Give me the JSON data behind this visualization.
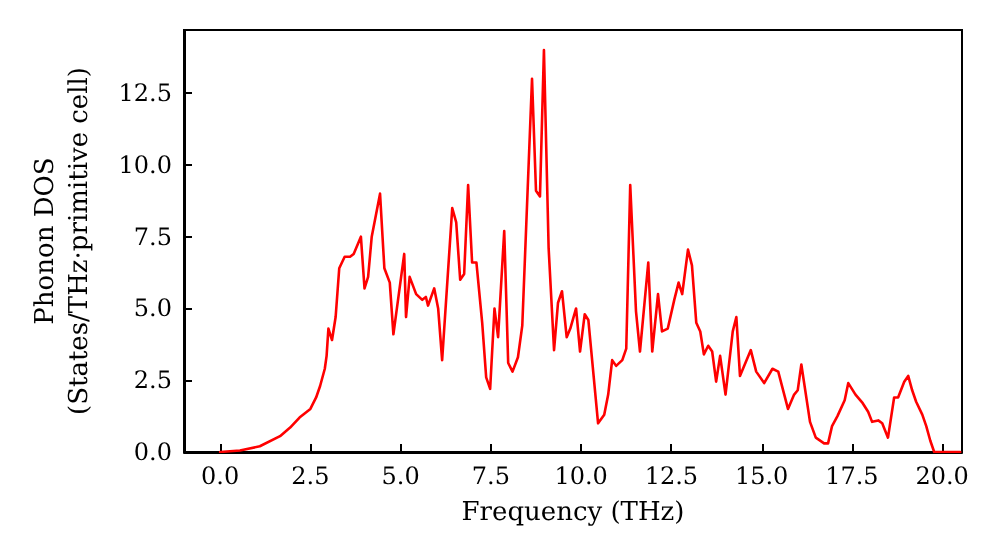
{
  "chart_data": {
    "type": "line",
    "xlabel": "Frequency (THz)",
    "ylabel": "Phonon DOS\n(States/THz·primitive cell)",
    "xlim": [
      -1,
      20.55
    ],
    "ylim": [
      0,
      14.7
    ],
    "xticks": [
      {
        "value": 0,
        "label": "0.0"
      },
      {
        "value": 2.5,
        "label": "2.5"
      },
      {
        "value": 5,
        "label": "5.0"
      },
      {
        "value": 7.5,
        "label": "7.5"
      },
      {
        "value": 10,
        "label": "10.0"
      },
      {
        "value": 12.5,
        "label": "12.5"
      },
      {
        "value": 15,
        "label": "15.0"
      },
      {
        "value": 17.5,
        "label": "17.5"
      },
      {
        "value": 20,
        "label": "20.0"
      }
    ],
    "yticks": [
      {
        "value": 0,
        "label": "0.0"
      },
      {
        "value": 2.5,
        "label": "2.5"
      },
      {
        "value": 5,
        "label": "5.0"
      },
      {
        "value": 7.5,
        "label": "7.5"
      },
      {
        "value": 10,
        "label": "10.0"
      },
      {
        "value": 12.5,
        "label": "12.5"
      }
    ],
    "grid": false,
    "marker": "none",
    "line_style": "solid",
    "series": [
      {
        "color": "#ff0000",
        "x": [
          0,
          0.55,
          1.1,
          1.66,
          1.94,
          2.2,
          2.5,
          2.66,
          2.77,
          2.9,
          2.95,
          3.0,
          3.1,
          3.2,
          3.3,
          3.45,
          3.6,
          3.7,
          3.9,
          4.0,
          4.1,
          4.2,
          4.43,
          4.55,
          4.7,
          4.8,
          5.1,
          5.15,
          5.25,
          5.43,
          5.6,
          5.7,
          5.76,
          5.93,
          6.04,
          6.15,
          6.43,
          6.54,
          6.65,
          6.76,
          6.87,
          6.98,
          7.1,
          7.26,
          7.37,
          7.48,
          7.6,
          7.7,
          7.87,
          7.98,
          8.1,
          8.25,
          8.37,
          8.64,
          8.75,
          8.86,
          8.97,
          9.1,
          9.25,
          9.36,
          9.47,
          9.6,
          9.7,
          9.86,
          9.97,
          10.1,
          10.2,
          10.47,
          10.64,
          10.75,
          10.86,
          10.97,
          11.14,
          11.25,
          11.36,
          11.52,
          11.63,
          11.86,
          11.97,
          12.13,
          12.24,
          12.4,
          12.58,
          12.7,
          12.8,
          12.96,
          13.07,
          13.19,
          13.3,
          13.4,
          13.52,
          13.63,
          13.74,
          13.85,
          14.0,
          14.2,
          14.3,
          14.4,
          14.7,
          14.85,
          15.07,
          15.3,
          15.46,
          15.73,
          15.9,
          16.0,
          16.1,
          16.34,
          16.5,
          16.73,
          16.84,
          16.95,
          17.1,
          17.3,
          17.4,
          17.6,
          17.8,
          17.95,
          18.06,
          18.23,
          18.34,
          18.5,
          18.67,
          18.78,
          18.95,
          19.06,
          19.17,
          19.28,
          19.45,
          19.56,
          19.67,
          19.78,
          20.5
        ],
        "values": [
          0,
          0.05,
          0.2,
          0.55,
          0.85,
          1.2,
          1.5,
          1.9,
          2.3,
          2.9,
          3.35,
          4.3,
          3.9,
          4.7,
          6.4,
          6.8,
          6.8,
          6.9,
          7.5,
          5.7,
          6.1,
          7.5,
          9.0,
          6.4,
          5.9,
          4.1,
          6.9,
          4.7,
          6.1,
          5.5,
          5.3,
          5.4,
          5.1,
          5.7,
          5.0,
          3.2,
          8.5,
          8.0,
          6.0,
          6.2,
          9.3,
          6.6,
          6.6,
          4.5,
          2.6,
          2.2,
          5.0,
          4.0,
          7.7,
          3.1,
          2.8,
          3.3,
          4.4,
          13.0,
          9.1,
          8.9,
          14.0,
          7.1,
          3.55,
          5.2,
          5.6,
          4.0,
          4.3,
          5.0,
          3.5,
          4.8,
          4.6,
          1.0,
          1.3,
          2.0,
          3.2,
          3.0,
          3.2,
          3.6,
          9.3,
          4.9,
          3.5,
          6.6,
          3.5,
          5.5,
          4.2,
          4.3,
          5.3,
          5.9,
          5.5,
          7.05,
          6.5,
          4.5,
          4.2,
          3.4,
          3.7,
          3.5,
          2.45,
          3.35,
          2.0,
          4.2,
          4.7,
          2.65,
          3.55,
          2.8,
          2.4,
          2.9,
          2.8,
          1.5,
          2.0,
          2.15,
          3.05,
          1.05,
          0.5,
          0.3,
          0.3,
          0.9,
          1.25,
          1.8,
          2.4,
          2.0,
          1.7,
          1.4,
          1.05,
          1.1,
          1.0,
          0.5,
          1.9,
          1.9,
          2.45,
          2.65,
          2.15,
          1.75,
          1.3,
          0.9,
          0.4,
          0,
          0
        ]
      }
    ]
  }
}
